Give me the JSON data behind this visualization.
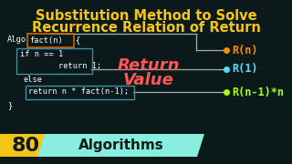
{
  "bg_color": "#0a1a1a",
  "title_line1": "Substitution Method to Solve",
  "title_line2": "Recurrence Relation of Return",
  "title_color": "#f5c518",
  "title_fontsize": 10.5,
  "code_color": "#ffffff",
  "algo_text": "Algo",
  "fact_header": "fact(n) {",
  "if_text": "if n == 1",
  "return1_text": "        return 1;",
  "else_text": "else",
  "return2_text": "return n * fact(n-1);",
  "close_brace": "}",
  "return_value_text1": "Return",
  "return_value_text2": "Value",
  "return_value_color": "#ff5555",
  "rn_text": "R(n)",
  "rn_color": "#ff8c00",
  "r1_text": "R(1)",
  "r1_color": "#55ddff",
  "rn1_text": "R(n-1)*n",
  "rn1_color": "#aaff00",
  "num_text": "80",
  "num_bg": "#f5c518",
  "algo_label": "Algorithms",
  "algo_label_bg": "#88eedd",
  "box_color": "#4488aa",
  "fact_box_color": "#cc6600",
  "line_color": "#aaaaaa",
  "dot_color_rn": "#ff8c00",
  "dot_color_r1": "#55ddff",
  "dot_color_rn1": "#aaff00"
}
